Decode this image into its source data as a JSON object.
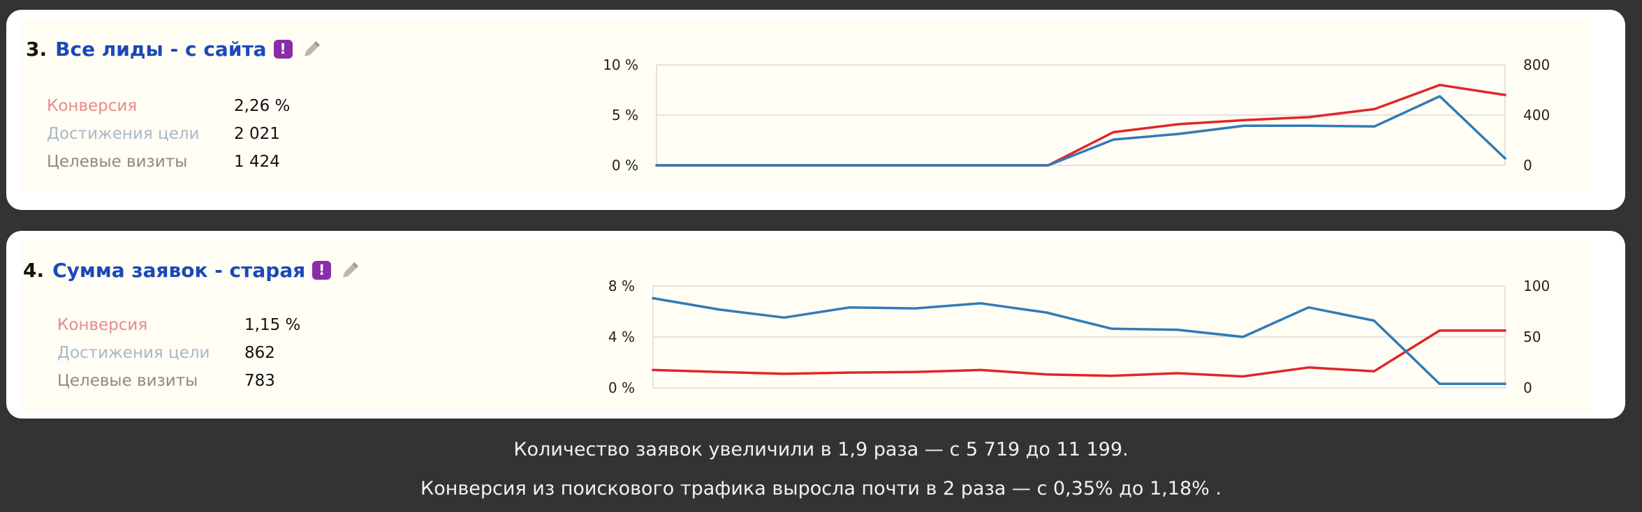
{
  "goals": [
    {
      "number": "3.",
      "name": "Все лиды - с сайта",
      "badge_glyph": "!",
      "badge_icon": "exclamation-badge-icon",
      "edit_icon": "pencil-icon",
      "metrics": {
        "conversion_label": "Конверсия",
        "conversion_value": "2,26 %",
        "reaches_label": "Достижения цели",
        "reaches_value": "2 021",
        "visits_label": "Целевые визиты",
        "visits_value": "1 424"
      }
    },
    {
      "number": "4.",
      "name": "Сумма заявок - старая",
      "badge_glyph": "!",
      "badge_icon": "exclamation-badge-icon",
      "edit_icon": "pencil-icon",
      "metrics": {
        "conversion_label": "Конверсия",
        "conversion_value": "1,15 %",
        "reaches_label": "Достижения цели",
        "reaches_value": "862",
        "visits_label": "Целевые визиты",
        "visits_value": "783"
      }
    }
  ],
  "chart_data": [
    {
      "type": "line",
      "title": "",
      "x": [
        1,
        2,
        3,
        4,
        5,
        6,
        7,
        8,
        9,
        10,
        11,
        12,
        13,
        14
      ],
      "left_axis": {
        "ticks": [
          "0 %",
          "5 %",
          "10 %"
        ],
        "ylim": [
          0,
          10
        ]
      },
      "right_axis": {
        "ticks": [
          "0",
          "400",
          "800"
        ],
        "ylim": [
          0,
          800
        ]
      },
      "grid": true,
      "series": [
        {
          "axis": "left",
          "color": "#e0262a",
          "values": [
            0,
            0,
            0,
            0,
            0,
            0,
            0,
            3.3,
            4.1,
            4.5,
            4.8,
            5.6,
            8.0,
            7.0
          ]
        },
        {
          "axis": "right",
          "color": "#2f7bb8",
          "values": [
            0,
            0,
            0,
            0,
            0,
            0,
            0,
            205,
            250,
            315,
            315,
            310,
            550,
            55
          ]
        }
      ]
    },
    {
      "type": "line",
      "title": "",
      "x": [
        1,
        2,
        3,
        4,
        5,
        6,
        7,
        8,
        9,
        10,
        11,
        12,
        13,
        14
      ],
      "left_axis": {
        "ticks": [
          "0 %",
          "4 %",
          "8 %"
        ],
        "ylim": [
          0,
          8
        ]
      },
      "right_axis": {
        "ticks": [
          "0",
          "50",
          "100"
        ],
        "ylim": [
          0,
          100
        ]
      },
      "grid": true,
      "series": [
        {
          "axis": "left",
          "color": "#e0262a",
          "values": [
            1.4,
            1.25,
            1.1,
            1.2,
            1.25,
            1.4,
            1.05,
            0.95,
            1.15,
            0.9,
            1.6,
            1.3,
            4.5,
            4.5
          ]
        },
        {
          "axis": "right",
          "color": "#2f7bb8",
          "values": [
            88,
            77,
            69,
            79,
            78,
            83,
            74,
            58,
            57,
            50,
            79,
            66,
            4,
            4
          ]
        }
      ]
    }
  ],
  "footer": {
    "line1": "Количество заявок увеличили в 1,9 раза — с 5 719 до 11 199.",
    "line2": "Конверсия из поискового трафика выросла почти в 2 раза — с 0,35% до 1,18% ."
  }
}
